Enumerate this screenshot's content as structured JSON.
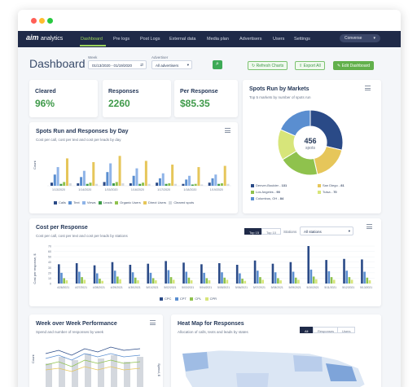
{
  "app": {
    "logo_main": "aim",
    "logo_sub": "analytics"
  },
  "nav": {
    "items": [
      "Dashboard",
      "Pre logs",
      "Post Logs",
      "External data",
      "Media plan",
      "Advertisers",
      "Users",
      "Settings"
    ],
    "user_menu": "Converse"
  },
  "page": {
    "title": "Dashboard"
  },
  "filters": {
    "week_label": "Week",
    "week_value": "01/13/2020 - 01/19/2020",
    "advertiser_label": "Advertiser",
    "advertiser_value": "All advertisers"
  },
  "actions": {
    "refresh": "Refresh Charts",
    "export": "Export All",
    "edit": "Edit Dashboard"
  },
  "kpis": [
    {
      "label": "Cleared",
      "value": "96%"
    },
    {
      "label": "Responses",
      "value": "2260"
    },
    {
      "label": "Per Response",
      "value": "$85.35"
    }
  ],
  "spots_by_day": {
    "title": "Spots Run and Responses by Day",
    "subtitle": "Cost per call, cost per text and cost per leads by day",
    "ylabel": "Count",
    "x_labels": [
      "1/13/2020",
      "1/14/2020",
      "1/15/2020",
      "1/16/2020",
      "1/17/2020",
      "1/18/2020",
      "1/19/2020"
    ],
    "legend": [
      "Calls",
      "Text",
      "Views",
      "Leads",
      "Organic Users",
      "Direct Users",
      "Cleared spots"
    ],
    "colors": {
      "navy": "#2a4a87",
      "blue": "#6f9bd8",
      "gold": "#e6c65a",
      "green": "#8fc24d",
      "gray": "#d4d8de"
    }
  },
  "chart_data": [
    {
      "type": "bar",
      "title": "Spots Run and Responses by Day",
      "ylabel": "Count",
      "categories": [
        "1/13/2020",
        "1/14/2020",
        "1/15/2020",
        "1/16/2020",
        "1/17/2020",
        "1/18/2020",
        "1/19/2020"
      ],
      "series": [
        {
          "name": "Calls",
          "values": [
            5,
            4,
            6,
            4,
            5,
            3,
            5
          ]
        },
        {
          "name": "Text",
          "values": [
            18,
            14,
            22,
            16,
            12,
            10,
            12
          ]
        },
        {
          "name": "Views",
          "values": [
            30,
            24,
            36,
            28,
            20,
            16,
            18
          ]
        },
        {
          "name": "Leads",
          "values": [
            3,
            3,
            4,
            3,
            3,
            2,
            3
          ]
        },
        {
          "name": "Organic Users",
          "values": [
            6,
            5,
            6,
            5,
            4,
            3,
            4
          ]
        },
        {
          "name": "Direct Users",
          "values": [
            44,
            38,
            48,
            40,
            34,
            30,
            32
          ]
        },
        {
          "name": "Cleared spots",
          "values": [
            4,
            3,
            4,
            3,
            3,
            2,
            3
          ]
        }
      ]
    },
    {
      "type": "pie",
      "title": "Spots Run by Markets",
      "center_value": "456",
      "center_label": "spots",
      "categories": [
        "Denver-Boulder",
        "San Diego",
        "Los Angeles",
        "Tulsa",
        "Columbus, OH"
      ],
      "values": [
        131,
        81,
        90,
        70,
        84
      ],
      "colors": [
        "#2a4a87",
        "#e6c65a",
        "#8fc24d",
        "#d7e57a",
        "#5a8ed0"
      ]
    },
    {
      "type": "bar",
      "title": "Cost per Response",
      "ylabel": "Cost per response, $",
      "categories": [
        "4/26/2021",
        "4/27/2021",
        "4/28/2021",
        "4/29/2021",
        "4/30/2021",
        "5/01/2021",
        "5/02/2021",
        "5/03/2021",
        "5/04/2021",
        "5/05/2021",
        "5/06/2021",
        "5/07/2021",
        "5/08/2021",
        "5/09/2021",
        "5/10/2021",
        "5/11/2021",
        "5/12/2021",
        "5/13/2021"
      ],
      "series": [
        {
          "name": "CPC",
          "values": [
            36,
            38,
            34,
            40,
            35,
            37,
            42,
            39,
            36,
            38,
            35,
            43,
            37,
            40,
            70,
            44,
            46,
            45
          ]
        },
        {
          "name": "CPT",
          "values": [
            20,
            22,
            19,
            24,
            21,
            20,
            25,
            22,
            20,
            21,
            19,
            24,
            21,
            22,
            26,
            23,
            24,
            22
          ]
        },
        {
          "name": "CPL",
          "values": [
            10,
            12,
            9,
            13,
            11,
            10,
            12,
            11,
            10,
            11,
            9,
            12,
            10,
            11,
            13,
            12,
            12,
            11
          ]
        },
        {
          "name": "CPR",
          "values": [
            6,
            7,
            5,
            8,
            6,
            6,
            7,
            6,
            6,
            7,
            5,
            7,
            6,
            7,
            8,
            7,
            7,
            6
          ]
        }
      ]
    }
  ],
  "markets": {
    "title": "Spots Run by Markets",
    "subtitle": "Top 5 markets by number of spots run",
    "legend": [
      {
        "name": "Denver-Boulder",
        "value": "131"
      },
      {
        "name": "San Diego",
        "value": "81"
      },
      {
        "name": "Los Angeles",
        "value": "90"
      },
      {
        "name": "Tulsa",
        "value": "70"
      },
      {
        "name": "Columbus, OH",
        "value": "84"
      }
    ]
  },
  "cost_per_response": {
    "title": "Cost per Response",
    "subtitle": "Cost per call, cost per text and cost per leads by stations",
    "ylabel": "Cost per response, $",
    "top15": "Top 15",
    "top10": "Top 10",
    "stations_label": "Stations",
    "stations_value": "All stations",
    "legend": [
      "CPC",
      "CPT",
      "CPL",
      "CPR"
    ],
    "y_ticks": [
      "0",
      "10",
      "20",
      "30",
      "40",
      "50",
      "60",
      "70"
    ]
  },
  "week_over_week": {
    "title": "Week over Week Performance",
    "subtitle": "Spend and number of responses by week",
    "ylabel_left": "Count",
    "ylabel_right": "Spend, $"
  },
  "heatmap": {
    "title": "Heat Map for Responses",
    "subtitle": "Allocation of calls, texts and leads by states",
    "toggles": [
      "All",
      "Responses",
      "Users"
    ]
  }
}
